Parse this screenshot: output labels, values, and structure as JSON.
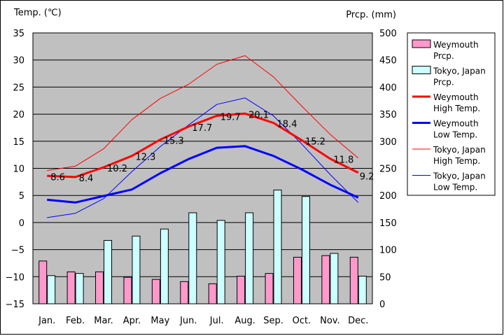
{
  "chart_data": {
    "type": "bar",
    "categories": [
      "Jan.",
      "Feb.",
      "Mar.",
      "Apr.",
      "May",
      "Jun.",
      "Jul.",
      "Aug.",
      "Sep.",
      "Oct.",
      "Nov.",
      "Dec."
    ],
    "left_axis": {
      "label": "Temp. (℃)",
      "ylim": [
        -15,
        35
      ],
      "ticks": [
        "35",
        "30",
        "25",
        "20",
        "15",
        "10",
        "5",
        "0",
        "−5",
        "−10",
        "−15"
      ]
    },
    "right_axis": {
      "label": "Prcp. (mm)",
      "ylim": [
        0,
        500
      ],
      "ticks": [
        "500",
        "450",
        "400",
        "350",
        "300",
        "250",
        "200",
        "150",
        "100",
        "50",
        "0"
      ]
    },
    "series": [
      {
        "name": [
          "Weymouth",
          "Prcp."
        ],
        "type": "bar",
        "axis": "right",
        "color": "#ff99cc",
        "values": [
          79,
          59,
          59,
          49,
          45,
          41,
          37,
          51,
          56,
          86,
          89,
          86
        ]
      },
      {
        "name": [
          "Tokyo, Japan",
          "Prcp."
        ],
        "type": "bar",
        "axis": "right",
        "color": "#ccffff",
        "values": [
          52,
          56,
          117,
          125,
          138,
          168,
          154,
          168,
          210,
          198,
          93,
          51
        ]
      },
      {
        "name": [
          "Weymouth",
          "High Temp."
        ],
        "type": "line",
        "axis": "left",
        "color": "#ff0000",
        "width": 3,
        "values": [
          8.6,
          8.4,
          10.2,
          12.3,
          15.3,
          17.7,
          19.7,
          20.1,
          18.4,
          15.2,
          11.8,
          9.2
        ],
        "labels": [
          "8.6",
          "8.4",
          "10.2",
          "12.3",
          "15.3",
          "17.7",
          "19.7",
          "20.1",
          "18.4",
          "15.2",
          "11.8",
          "9.2"
        ]
      },
      {
        "name": [
          "Weymouth",
          "Low Temp."
        ],
        "type": "line",
        "axis": "left",
        "color": "#0000ff",
        "width": 3,
        "values": [
          4.2,
          3.7,
          4.9,
          6.1,
          9.1,
          11.7,
          13.8,
          14.1,
          12.3,
          9.8,
          7.0,
          4.6
        ]
      },
      {
        "name": [
          "Tokyo, Japan",
          "High Temp."
        ],
        "type": "line",
        "axis": "left",
        "color": "#ff0000",
        "width": 1,
        "values": [
          9.6,
          10.4,
          13.6,
          19.0,
          22.9,
          25.5,
          29.2,
          30.8,
          26.9,
          21.5,
          16.3,
          11.9
        ]
      },
      {
        "name": [
          "Tokyo, Japan",
          "Low Temp."
        ],
        "type": "line",
        "axis": "left",
        "color": "#0000ff",
        "width": 1,
        "values": [
          0.9,
          1.7,
          4.4,
          9.4,
          14.0,
          18.0,
          21.8,
          23.0,
          19.7,
          14.5,
          8.9,
          3.7
        ]
      }
    ],
    "grid": true,
    "legend_position": "right"
  }
}
